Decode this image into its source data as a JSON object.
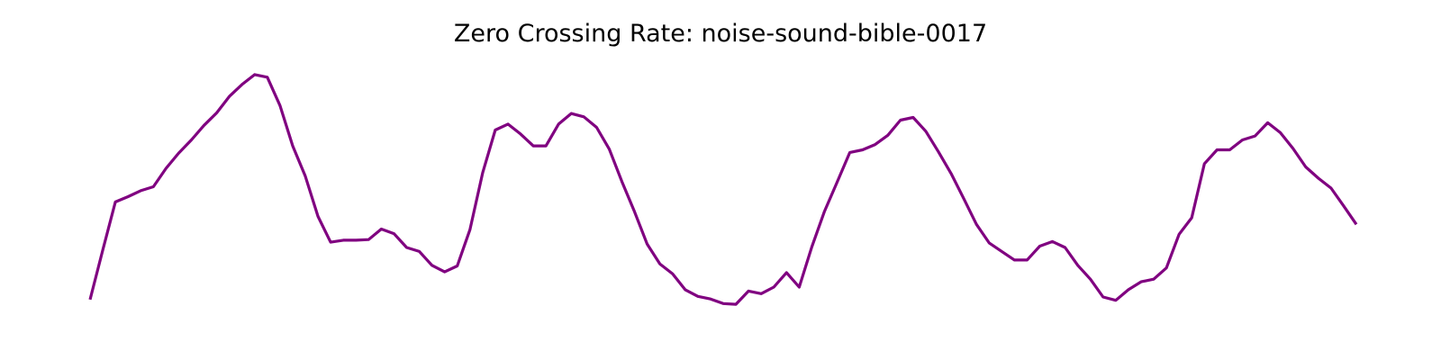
{
  "chart_data": {
    "type": "line",
    "title": "Zero Crossing Rate: noise-sound-bible-0017",
    "xlabel": "",
    "ylabel": "",
    "axes_visible": false,
    "grid": false,
    "series": [
      {
        "color": "#800080",
        "x": [
          0,
          1,
          2,
          3,
          4,
          5,
          6,
          7,
          8,
          9,
          10,
          11,
          12,
          13,
          14,
          15,
          16,
          17,
          18,
          19,
          20,
          21,
          22,
          23,
          24,
          25,
          26,
          27,
          28,
          29,
          30,
          31,
          32,
          33,
          34,
          35,
          36,
          37,
          38,
          39,
          40,
          41,
          42,
          43,
          44,
          45,
          46,
          47,
          48,
          49,
          50,
          51,
          52,
          53,
          54,
          55,
          56,
          57,
          58,
          59,
          60,
          61,
          62,
          63,
          64,
          65,
          66,
          67,
          68,
          69,
          70,
          71,
          72,
          73,
          74,
          75,
          76,
          77,
          78,
          79,
          80,
          81,
          82,
          83,
          84,
          85,
          86,
          87,
          88,
          89,
          90,
          91,
          92,
          93,
          94,
          95,
          96,
          97,
          98,
          99,
          100
        ],
        "values": [
          0.056,
          0.131,
          0.204,
          0.212,
          0.221,
          0.227,
          0.255,
          0.278,
          0.298,
          0.32,
          0.339,
          0.364,
          0.382,
          0.397,
          0.393,
          0.35,
          0.289,
          0.243,
          0.182,
          0.143,
          0.146,
          0.146,
          0.147,
          0.163,
          0.156,
          0.135,
          0.129,
          0.108,
          0.098,
          0.107,
          0.162,
          0.248,
          0.313,
          0.322,
          0.307,
          0.289,
          0.289,
          0.322,
          0.338,
          0.333,
          0.317,
          0.284,
          0.235,
          0.189,
          0.14,
          0.11,
          0.095,
          0.071,
          0.061,
          0.057,
          0.05,
          0.049,
          0.069,
          0.065,
          0.075,
          0.097,
          0.075,
          0.136,
          0.19,
          0.234,
          0.279,
          0.283,
          0.291,
          0.305,
          0.328,
          0.332,
          0.311,
          0.28,
          0.247,
          0.209,
          0.17,
          0.142,
          0.129,
          0.116,
          0.116,
          0.137,
          0.144,
          0.135,
          0.108,
          0.087,
          0.06,
          0.055,
          0.071,
          0.083,
          0.087,
          0.104,
          0.155,
          0.18,
          0.262,
          0.283,
          0.283,
          0.298,
          0.304,
          0.324,
          0.309,
          0.285,
          0.257,
          0.24,
          0.225,
          0.198,
          0.17
        ]
      }
    ],
    "xlim": [
      0,
      100
    ],
    "ylim": [
      0.0,
      0.42
    ]
  }
}
